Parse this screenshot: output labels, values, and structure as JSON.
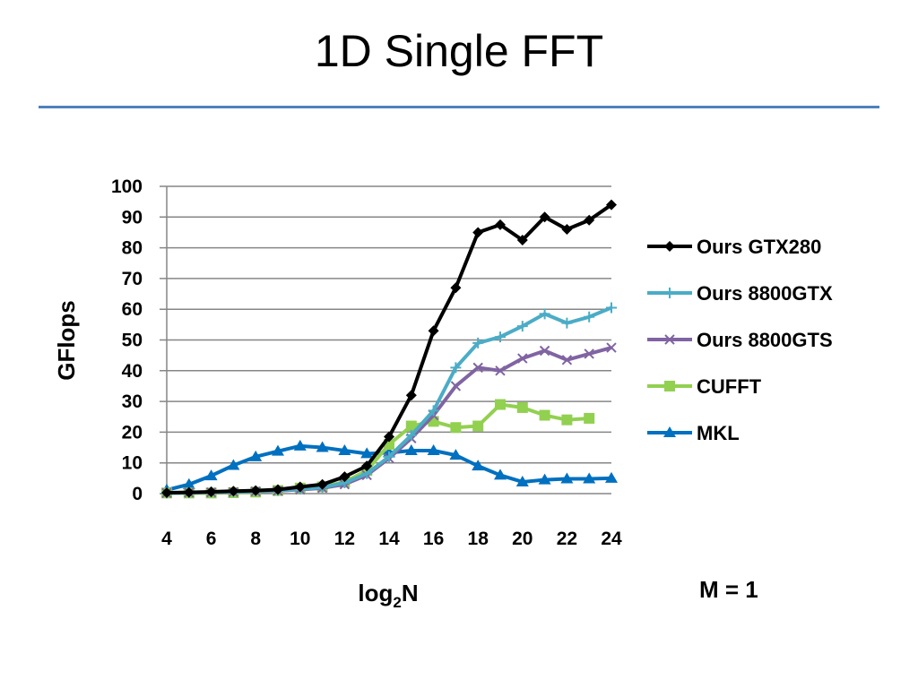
{
  "slide": {
    "title": "1D Single FFT",
    "note": "M = 1"
  },
  "colors": {
    "rule": "#4f81bd",
    "grid": "#868686"
  },
  "chart_data": {
    "type": "line",
    "title": "",
    "xlabel": "log2N",
    "xlabel_main": "log",
    "xlabel_sub": "2",
    "xlabel_tail": "N",
    "ylabel": "GFlops",
    "xlim": [
      4,
      24
    ],
    "ylim": [
      0,
      100
    ],
    "x_ticks": [
      4,
      6,
      8,
      10,
      12,
      14,
      16,
      18,
      20,
      22,
      24
    ],
    "y_ticks": [
      0,
      10,
      20,
      30,
      40,
      50,
      60,
      70,
      80,
      90,
      100
    ],
    "grid": "horizontal",
    "legend_position": "right",
    "x": [
      4,
      5,
      6,
      7,
      8,
      9,
      10,
      11,
      12,
      13,
      14,
      15,
      16,
      17,
      18,
      19,
      20,
      21,
      22,
      23,
      24
    ],
    "series": [
      {
        "name": "Ours GTX280",
        "color": "#000000",
        "marker": "diamond",
        "values": [
          0.3,
          0.4,
          0.6,
          0.8,
          1.0,
          1.3,
          2.2,
          3.0,
          5.5,
          9.0,
          18.5,
          32.0,
          53.0,
          67.0,
          85.0,
          87.5,
          82.5,
          90.0,
          86.0,
          89.0,
          94.0
        ]
      },
      {
        "name": "Ours 8800GTX",
        "color": "#4bacc6",
        "marker": "plus",
        "values": [
          0.2,
          0.3,
          0.5,
          0.6,
          0.8,
          1.0,
          1.5,
          2.0,
          3.5,
          6.5,
          12.0,
          19.0,
          27.0,
          41.0,
          49.0,
          51.0,
          54.5,
          58.5,
          55.5,
          57.5,
          60.5
        ]
      },
      {
        "name": "Ours 8800GTS",
        "color": "#8064a2",
        "marker": "x",
        "values": [
          0.2,
          0.3,
          0.4,
          0.5,
          0.7,
          0.9,
          1.3,
          1.8,
          3.0,
          6.0,
          11.5,
          18.0,
          25.5,
          35.0,
          41.0,
          40.0,
          44.0,
          46.5,
          43.5,
          45.5,
          47.5
        ]
      },
      {
        "name": "CUFFT",
        "color": "#92d050",
        "marker": "square",
        "values": [
          0.2,
          0.2,
          0.2,
          0.3,
          0.5,
          1.0,
          1.8,
          2.2,
          3.8,
          7.5,
          16.0,
          22.0,
          23.5,
          21.5,
          22.0,
          29.0,
          28.0,
          25.5,
          24.0,
          24.5,
          null
        ]
      },
      {
        "name": "MKL",
        "color": "#0070c0",
        "marker": "triangle",
        "values": [
          1.2,
          3.0,
          5.8,
          9.2,
          12.0,
          13.8,
          15.5,
          15.0,
          14.0,
          13.0,
          13.3,
          14.0,
          14.0,
          12.5,
          9.0,
          6.0,
          3.8,
          4.5,
          4.8,
          4.8,
          5.0
        ]
      }
    ]
  }
}
